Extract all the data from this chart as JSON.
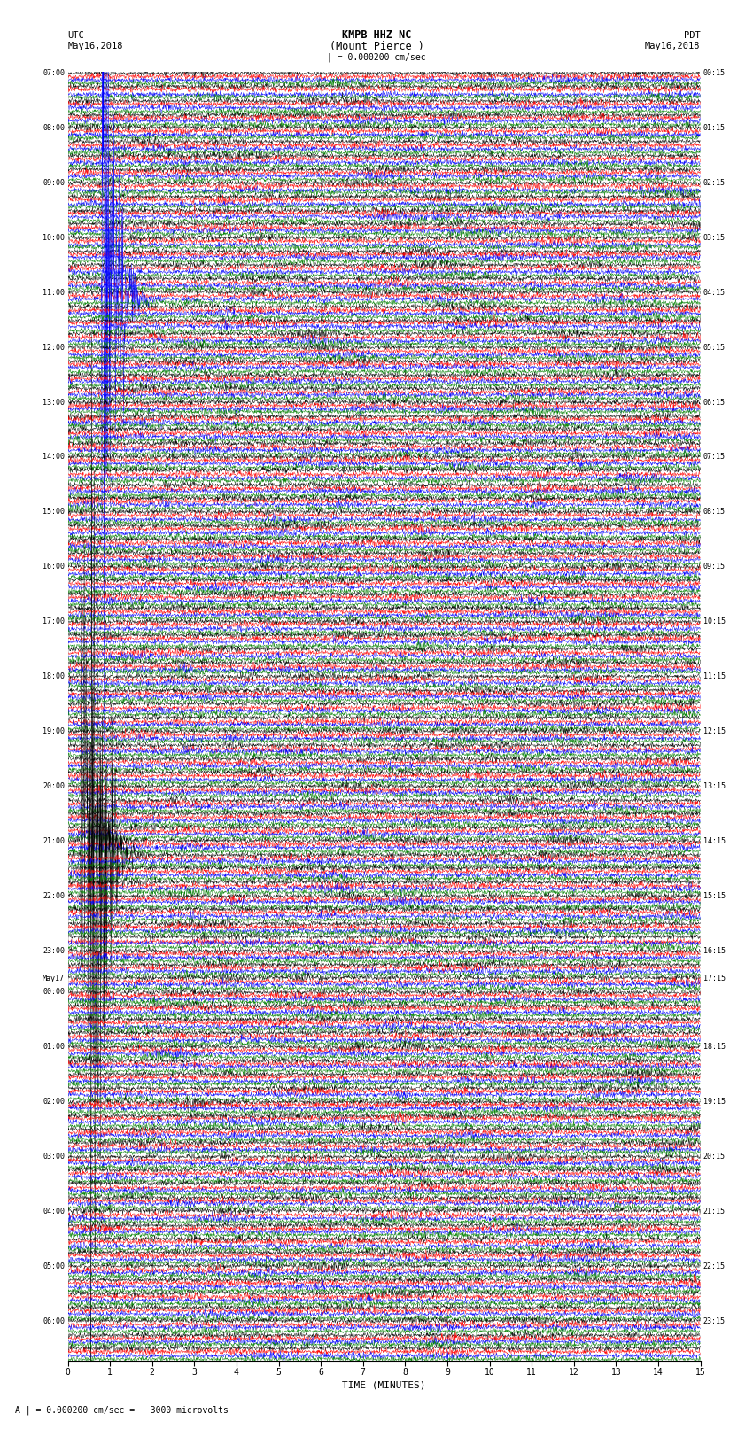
{
  "title_line1": "KMPB HHZ NC",
  "title_line2": "(Mount Pierce )",
  "title_line3": "| = 0.000200 cm/sec",
  "left_header_line1": "UTC",
  "left_header_line2": "May16,2018",
  "right_header_line1": "PDT",
  "right_header_line2": "May16,2018",
  "xlabel": "TIME (MINUTES)",
  "footer_note": "A | = 0.000200 cm/sec =   3000 microvolts",
  "left_times": [
    "07:00",
    "",
    "",
    "",
    "08:00",
    "",
    "",
    "",
    "09:00",
    "",
    "",
    "",
    "10:00",
    "",
    "",
    "",
    "11:00",
    "",
    "",
    "",
    "12:00",
    "",
    "",
    "",
    "13:00",
    "",
    "",
    "",
    "14:00",
    "",
    "",
    "",
    "15:00",
    "",
    "",
    "",
    "16:00",
    "",
    "",
    "",
    "17:00",
    "",
    "",
    "",
    "18:00",
    "",
    "",
    "",
    "19:00",
    "",
    "",
    "",
    "20:00",
    "",
    "",
    "",
    "21:00",
    "",
    "",
    "",
    "22:00",
    "",
    "",
    "",
    "23:00",
    "",
    "May17",
    "00:00",
    "",
    "",
    "",
    "01:00",
    "",
    "",
    "",
    "02:00",
    "",
    "",
    "",
    "03:00",
    "",
    "",
    "",
    "04:00",
    "",
    "",
    "",
    "05:00",
    "",
    "",
    "",
    "06:00",
    "",
    ""
  ],
  "right_times": [
    "00:15",
    "",
    "",
    "",
    "01:15",
    "",
    "",
    "",
    "02:15",
    "",
    "",
    "",
    "03:15",
    "",
    "",
    "",
    "04:15",
    "",
    "",
    "",
    "05:15",
    "",
    "",
    "",
    "06:15",
    "",
    "",
    "",
    "07:15",
    "",
    "",
    "",
    "08:15",
    "",
    "",
    "",
    "09:15",
    "",
    "",
    "",
    "10:15",
    "",
    "",
    "",
    "11:15",
    "",
    "",
    "",
    "12:15",
    "",
    "",
    "",
    "13:15",
    "",
    "",
    "",
    "14:15",
    "",
    "",
    "",
    "15:15",
    "",
    "",
    "",
    "16:15",
    "",
    "17:15",
    "",
    "",
    "",
    "",
    "18:15",
    "",
    "",
    "",
    "19:15",
    "",
    "",
    "",
    "20:15",
    "",
    "",
    "",
    "21:15",
    "",
    "",
    "",
    "22:15",
    "",
    "",
    "",
    "23:15",
    "",
    ""
  ],
  "colors": [
    "black",
    "red",
    "blue",
    "green"
  ],
  "minutes": 15,
  "background_color": "white",
  "spike_blue_group": 16,
  "spike_blue_minute": 0.8,
  "spike_black_group1": 56,
  "spike_black_minute1": 0.3,
  "spike_black_group2": 57,
  "spike_black_minute2": 0.5
}
